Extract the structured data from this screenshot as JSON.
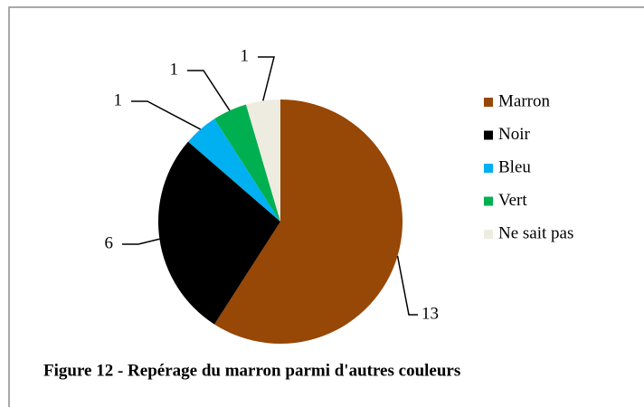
{
  "chart_data": {
    "type": "pie",
    "title": "Figure 12 - Repérage du marron parmi d'autres couleurs",
    "categories": [
      "Marron",
      "Noir",
      "Bleu",
      "Vert",
      "Ne sait pas"
    ],
    "values": [
      13,
      6,
      1,
      1,
      1
    ],
    "colors": [
      "#974706",
      "#000000",
      "#00b0f0",
      "#00b050",
      "#eeece1"
    ],
    "legend": "right"
  }
}
